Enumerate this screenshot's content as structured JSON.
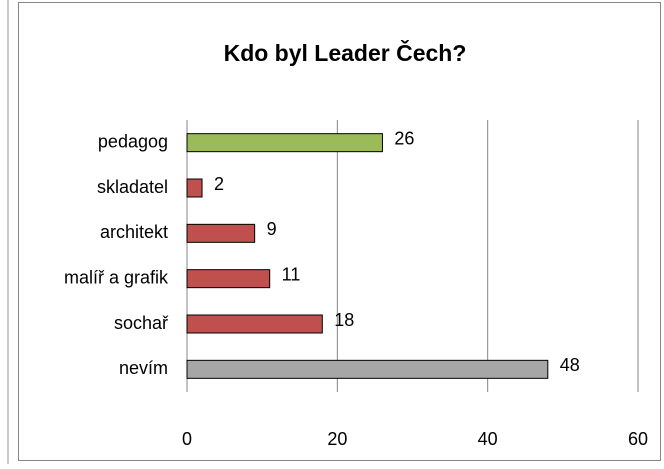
{
  "chart_data": {
    "type": "bar",
    "orientation": "horizontal",
    "title": "Kdo byl Leader Čech?",
    "categories": [
      "pedagog",
      "skladatel",
      "architekt",
      "malíř a grafik",
      "sochař",
      "nevím"
    ],
    "values": [
      26,
      2,
      9,
      11,
      18,
      48
    ],
    "colors": [
      "#9bbb59",
      "#c0504d",
      "#c0504d",
      "#c0504d",
      "#c0504d",
      "#a6a6a6"
    ],
    "xlim": [
      0,
      60
    ],
    "xticks": [
      0,
      20,
      40,
      60
    ],
    "grid": true
  }
}
